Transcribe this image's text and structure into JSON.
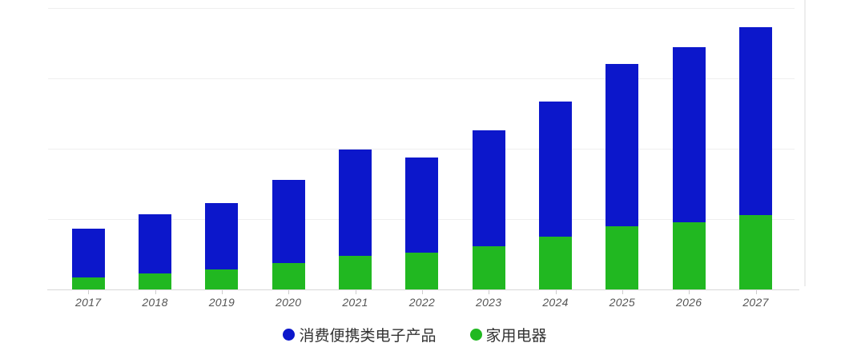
{
  "chart_data": {
    "type": "bar",
    "stacked": true,
    "title": "",
    "xlabel": "",
    "ylabel": "",
    "categories": [
      "2017",
      "2018",
      "2019",
      "2020",
      "2021",
      "2022",
      "2023",
      "2024",
      "2025",
      "2026",
      "2027"
    ],
    "series": [
      {
        "name": "消费便携类电子产品",
        "color": "#0c17cb",
        "stack_order": "top",
        "values": [
          69,
          84,
          95,
          119,
          151,
          135,
          165,
          192,
          231,
          249,
          267
        ]
      },
      {
        "name": "家用电器",
        "color": "#21b821",
        "stack_order": "bottom",
        "values": [
          17,
          23,
          28,
          37,
          48,
          52,
          61,
          75,
          90,
          95,
          106
        ]
      }
    ],
    "stacked_totals": [
      86,
      107,
      123,
      156,
      199,
      187,
      226,
      267,
      321,
      344,
      373
    ],
    "ylim": [
      0,
      400
    ],
    "y_gridline_step": 100,
    "y_tick_labels_shown": false,
    "grid": "horizontal",
    "legend_position": "bottom",
    "note": "No numeric y-axis labels are visible; values estimated in gridline units (one gridline interval = 100)."
  },
  "colors": {
    "background": "#ffffff",
    "gridline": "#efefef",
    "axis_line": "#d8d8d8",
    "tick": "#cccccc",
    "x_label_text": "#555555",
    "legend_text": "#333333"
  }
}
